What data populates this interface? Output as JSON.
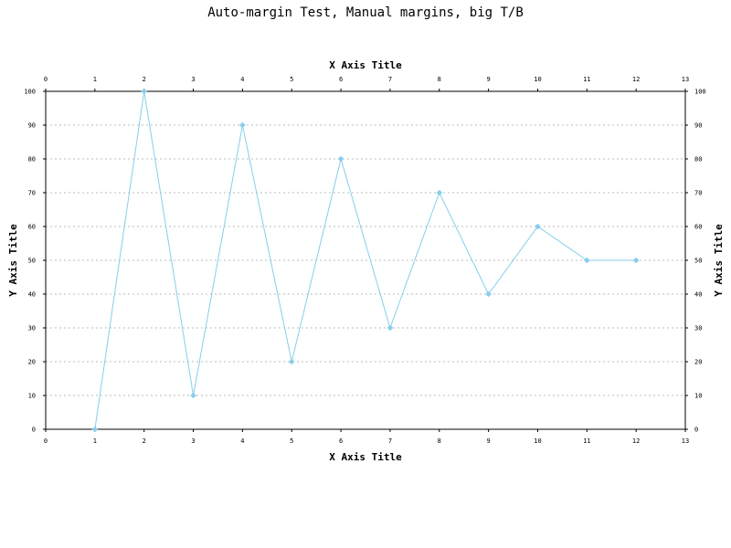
{
  "chart_data": {
    "type": "line",
    "title": "Auto-margin Test, Manual margins, big T/B",
    "xlabel": "X Axis Title",
    "x2label": "X Axis Title",
    "ylabel": "Y Axis Title",
    "y2label": "Y Axis Title",
    "xlim": [
      0,
      13
    ],
    "ylim": [
      0,
      100
    ],
    "x_ticks": [
      0,
      1,
      2,
      3,
      4,
      5,
      6,
      7,
      8,
      9,
      10,
      11,
      12,
      13
    ],
    "y_ticks": [
      0,
      10,
      20,
      30,
      40,
      50,
      60,
      70,
      80,
      90,
      100
    ],
    "grid": "horizontal dashed",
    "series": [
      {
        "x": [
          1,
          2,
          3,
          4,
          5,
          6,
          7,
          8,
          9,
          10,
          11,
          12
        ],
        "values": [
          0,
          100,
          10,
          90,
          20,
          80,
          30,
          70,
          40,
          60,
          50,
          50
        ],
        "color": "#87CEEB",
        "marker": "diamond"
      }
    ]
  }
}
